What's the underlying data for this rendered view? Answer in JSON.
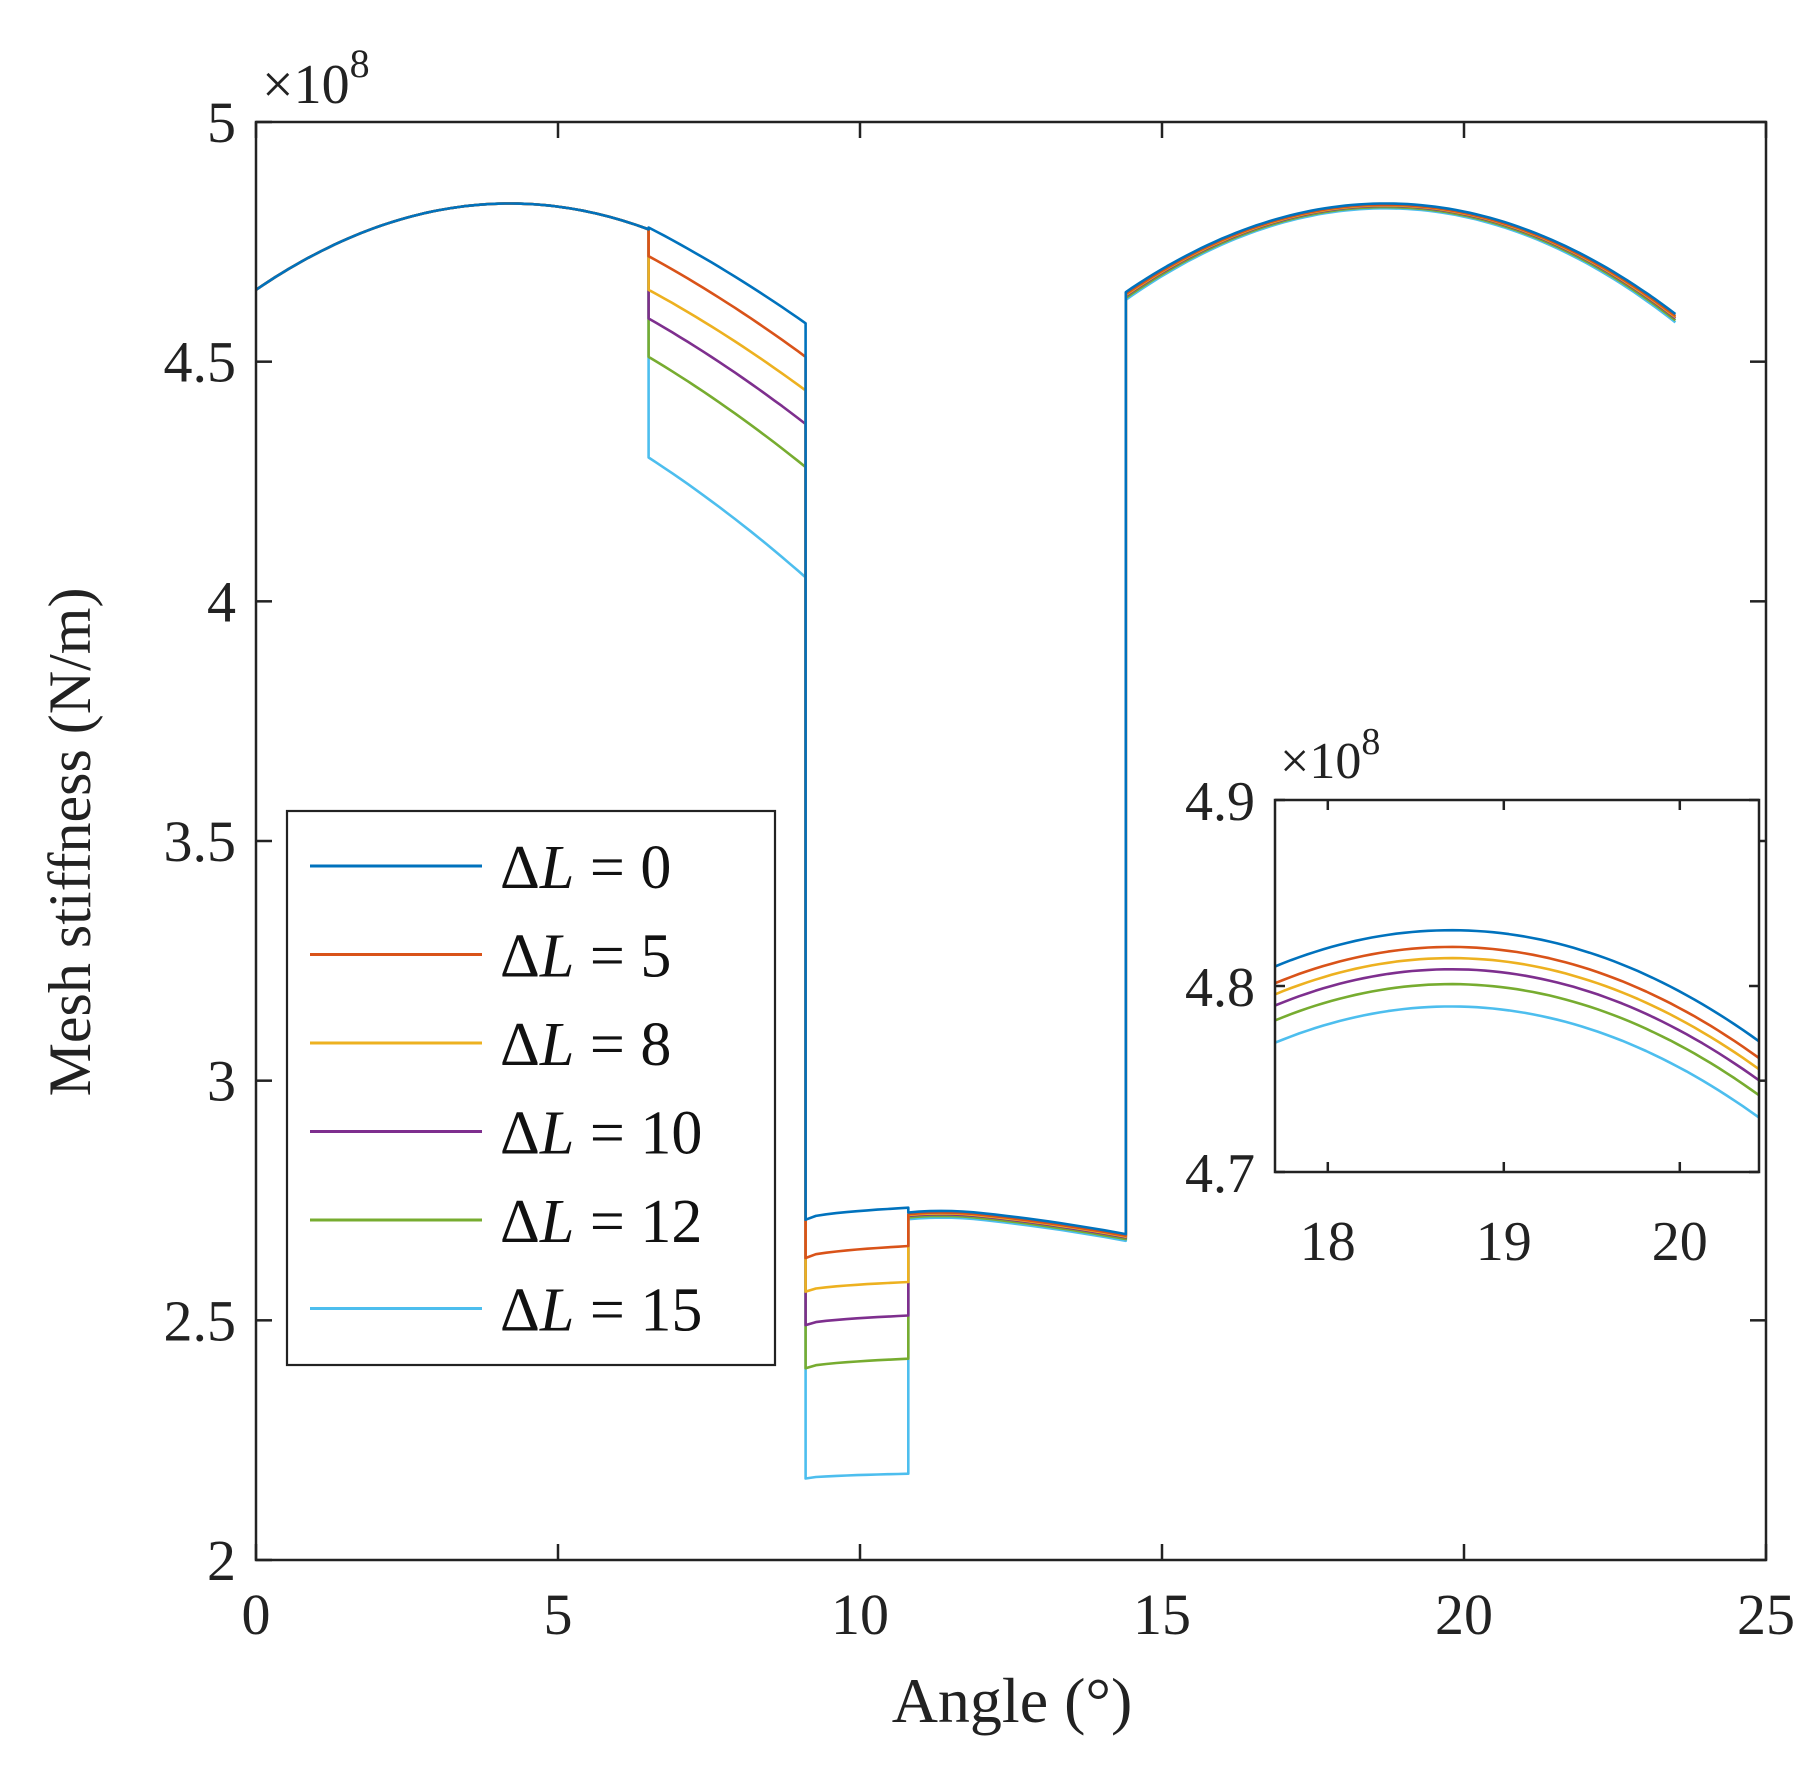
{
  "chart_data": [
    {
      "type": "line",
      "name": "main",
      "xlabel": "Angle (°)",
      "ylabel": "Mesh stiffness (N/m)",
      "exponent_label": "×10",
      "exponent_power": "8",
      "xlim": [
        0,
        25
      ],
      "ylim": [
        2,
        5
      ],
      "xticks": [
        0,
        5,
        10,
        15,
        20,
        25
      ],
      "xtick_labels": [
        "0",
        "5",
        "10",
        "15",
        "20",
        "25"
      ],
      "yticks": [
        2,
        2.5,
        3,
        3.5,
        4,
        4.5,
        5
      ],
      "ytick_labels": [
        "2",
        "2.5",
        "3",
        "3.5",
        "4",
        "4.5",
        "5"
      ],
      "legend": {
        "position": "lower-left"
      },
      "series": [
        {
          "name": "ΔL = 0",
          "delta": "ΔL",
          "value": "0",
          "color": "#0072BD",
          "single_low": 2.71,
          "single_pit_end": 2.735,
          "right_offset": 0.0
        },
        {
          "name": "ΔL = 5",
          "delta": "ΔL",
          "value": "5",
          "color": "#D95319",
          "single_low": 2.63,
          "single_pit_end": 2.655,
          "right_offset": -0.01
        },
        {
          "name": "ΔL = 8",
          "delta": "ΔL",
          "value": "8",
          "color": "#EDB120",
          "single_low": 2.56,
          "single_pit_end": 2.58,
          "right_offset": -0.015
        },
        {
          "name": "ΔL = 10",
          "delta": "ΔL",
          "value": "10",
          "color": "#7E2F8E",
          "single_low": 2.49,
          "single_pit_end": 2.51,
          "right_offset": -0.02
        },
        {
          "name": "ΔL = 12",
          "delta": "ΔL",
          "value": "12",
          "color": "#77AC30",
          "single_low": 2.4,
          "single_pit_end": 2.42,
          "right_offset": -0.03
        },
        {
          "name": "ΔL = 15",
          "delta": "ΔL",
          "value": "15",
          "color": "#4DBEEE",
          "single_low": 2.17,
          "single_pit_end": 2.18,
          "right_offset": -0.04
        }
      ],
      "segment_values": {
        "double_tooth_1": {
          "x_start": 0,
          "x_end": 6.5,
          "y_start": 4.65,
          "y_peak": 4.83,
          "x_peak": 4.2,
          "y_end": 4.78
        },
        "fault_region": {
          "x_start": 6.5,
          "x_end": 9.1,
          "y_start": [
            4.78,
            4.72,
            4.65,
            4.59,
            4.51,
            4.3
          ],
          "y_end": [
            4.58,
            4.51,
            4.44,
            4.37,
            4.28,
            4.05
          ]
        },
        "single_tooth_pit": {
          "x_start": 9.1,
          "x_end": 10.8
        },
        "single_tooth_2": {
          "x_start": 10.8,
          "x_end": 14.4,
          "y_start": 2.725,
          "y_peak": 2.735,
          "y_end": 2.68
        },
        "double_tooth_2": {
          "x_start": 14.4,
          "x_end": 23.5,
          "y_start": 4.645,
          "y_peak": 4.83,
          "x_peak": 18.7,
          "y_end": 4.58
        }
      }
    },
    {
      "type": "line",
      "name": "inset",
      "exponent_label": "×10",
      "exponent_power": "8",
      "xlim": [
        17.7,
        20.45
      ],
      "ylim": [
        4.7,
        4.9
      ],
      "xticks": [
        18,
        19,
        20
      ],
      "xtick_labels": [
        "18",
        "19",
        "20"
      ],
      "yticks": [
        4.7,
        4.8,
        4.9
      ],
      "ytick_labels": [
        "4.7",
        "4.8",
        "4.9"
      ],
      "series": [
        {
          "name": "ΔL = 0",
          "color": "#0072BD",
          "peak": 4.83,
          "x_peak": 18.7,
          "curvature": 0.0195
        },
        {
          "name": "ΔL = 5",
          "color": "#D95319",
          "peak": 4.821,
          "x_peak": 18.7,
          "curvature": 0.0195
        },
        {
          "name": "ΔL = 8",
          "color": "#EDB120",
          "peak": 4.815,
          "x_peak": 18.7,
          "curvature": 0.0195
        },
        {
          "name": "ΔL = 10",
          "color": "#7E2F8E",
          "peak": 4.809,
          "x_peak": 18.7,
          "curvature": 0.0195
        },
        {
          "name": "ΔL = 12",
          "color": "#77AC30",
          "peak": 4.801,
          "x_peak": 18.7,
          "curvature": 0.0195
        },
        {
          "name": "ΔL = 15",
          "color": "#4DBEEE",
          "peak": 4.789,
          "x_peak": 18.7,
          "curvature": 0.0195
        }
      ]
    }
  ]
}
